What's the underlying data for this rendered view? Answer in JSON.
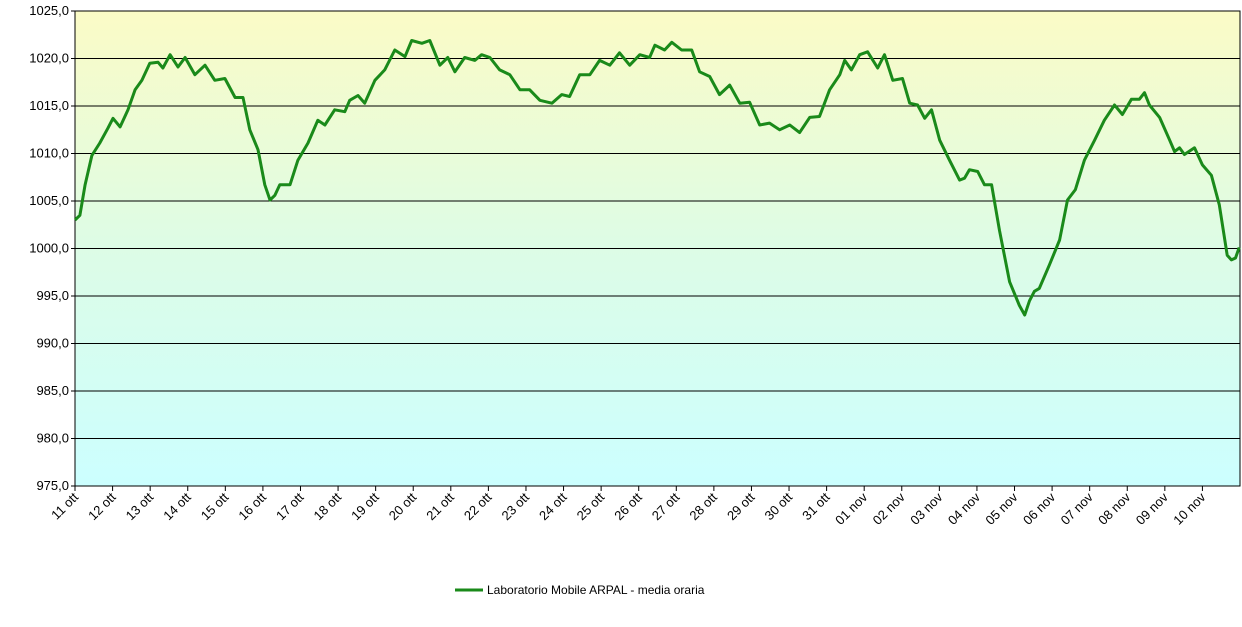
{
  "chart_data": {
    "type": "line",
    "x": [
      0,
      0.13,
      0.27,
      0.45,
      0.66,
      0.88,
      1.01,
      1.2,
      1.41,
      1.6,
      1.78,
      1.99,
      2.21,
      2.34,
      2.53,
      2.74,
      2.93,
      3.19,
      3.46,
      3.72,
      3.99,
      4.26,
      4.47,
      4.65,
      4.87,
      5.05,
      5.19,
      5.32,
      5.45,
      5.72,
      5.93,
      6.2,
      6.46,
      6.65,
      6.91,
      7.18,
      7.31,
      7.53,
      7.71,
      7.98,
      8.24,
      8.51,
      8.78,
      8.96,
      9.23,
      9.44,
      9.71,
      9.92,
      10.11,
      10.37,
      10.64,
      10.82,
      11.04,
      11.3,
      11.57,
      11.84,
      12.1,
      12.37,
      12.69,
      12.95,
      13.16,
      13.43,
      13.7,
      13.96,
      14.23,
      14.49,
      14.76,
      15.03,
      15.29,
      15.43,
      15.69,
      15.88,
      16.14,
      16.41,
      16.62,
      16.89,
      17.15,
      17.42,
      17.69,
      17.95,
      18.22,
      18.48,
      18.75,
      19.02,
      19.28,
      19.55,
      19.81,
      20.08,
      20.35,
      20.48,
      20.66,
      20.88,
      21.09,
      21.36,
      21.54,
      21.76,
      22.02,
      22.21,
      22.42,
      22.61,
      22.79,
      23.01,
      23.27,
      23.54,
      23.67,
      23.8,
      24.02,
      24.2,
      24.39,
      24.6,
      24.87,
      25.13,
      25.27,
      25.4,
      25.53,
      25.66,
      25.93,
      26.2,
      26.41,
      26.62,
      26.86,
      27.13,
      27.39,
      27.66,
      27.87,
      28.11,
      28.32,
      28.46,
      28.59,
      28.86,
      29.12,
      29.26,
      29.39,
      29.52,
      29.79,
      30.0,
      30.24,
      30.45,
      30.66,
      30.77,
      30.88,
      30.98
    ],
    "series": [
      {
        "name": "Laboratorio Mobile ARPAL - media oraria",
        "color": "#1a8a1a",
        "values": [
          1003.0,
          1003.5,
          1006.7,
          1009.8,
          1011.1,
          1012.7,
          1013.7,
          1012.8,
          1014.6,
          1016.7,
          1017.7,
          1019.5,
          1019.6,
          1019.0,
          1020.4,
          1019.1,
          1020.1,
          1018.3,
          1019.3,
          1017.7,
          1017.9,
          1015.9,
          1015.9,
          1012.5,
          1010.4,
          1006.7,
          1005.1,
          1005.6,
          1006.7,
          1006.7,
          1009.3,
          1011.1,
          1013.5,
          1013.0,
          1014.6,
          1014.4,
          1015.6,
          1016.1,
          1015.3,
          1017.7,
          1018.8,
          1020.9,
          1020.2,
          1021.9,
          1021.6,
          1021.9,
          1019.3,
          1020.1,
          1018.6,
          1020.1,
          1019.8,
          1020.4,
          1020.1,
          1018.8,
          1018.3,
          1016.7,
          1016.7,
          1015.6,
          1015.3,
          1016.2,
          1016.0,
          1018.3,
          1018.3,
          1019.8,
          1019.3,
          1020.6,
          1019.3,
          1020.4,
          1020.1,
          1021.4,
          1020.9,
          1021.7,
          1020.9,
          1020.9,
          1018.6,
          1018.1,
          1016.2,
          1017.2,
          1015.3,
          1015.4,
          1013.0,
          1013.2,
          1012.5,
          1013.0,
          1012.2,
          1013.8,
          1013.9,
          1016.7,
          1018.3,
          1019.8,
          1018.8,
          1020.4,
          1020.7,
          1019.0,
          1020.4,
          1017.7,
          1017.9,
          1015.3,
          1015.1,
          1013.7,
          1014.6,
          1011.4,
          1009.3,
          1007.2,
          1007.4,
          1008.3,
          1008.1,
          1006.7,
          1006.7,
          1001.9,
          996.5,
          994.0,
          993.0,
          994.5,
          995.5,
          995.8,
          998.3,
          1000.9,
          1005.1,
          1006.2,
          1009.3,
          1011.4,
          1013.5,
          1015.1,
          1014.1,
          1015.7,
          1015.7,
          1016.4,
          1015.1,
          1013.8,
          1011.5,
          1010.2,
          1010.6,
          1009.9,
          1010.6,
          1008.8,
          1007.7,
          1004.6,
          999.3,
          998.8,
          999.0,
          1000.1
        ]
      }
    ],
    "xlim": [
      0,
      31
    ],
    "xticks": [
      {
        "value": 0,
        "label": "11 ott"
      },
      {
        "value": 1,
        "label": "12 ott"
      },
      {
        "value": 2,
        "label": "13 ott"
      },
      {
        "value": 3,
        "label": "14 ott"
      },
      {
        "value": 4,
        "label": "15 ott"
      },
      {
        "value": 5,
        "label": "16 ott"
      },
      {
        "value": 6,
        "label": "17 ott"
      },
      {
        "value": 7,
        "label": "18 ott"
      },
      {
        "value": 8,
        "label": "19 ott"
      },
      {
        "value": 9,
        "label": "20 ott"
      },
      {
        "value": 10,
        "label": "21 ott"
      },
      {
        "value": 11,
        "label": "22 ott"
      },
      {
        "value": 12,
        "label": "23 ott"
      },
      {
        "value": 13,
        "label": "24 ott"
      },
      {
        "value": 14,
        "label": "25 ott"
      },
      {
        "value": 15,
        "label": "26 ott"
      },
      {
        "value": 16,
        "label": "27 ott"
      },
      {
        "value": 17,
        "label": "28 ott"
      },
      {
        "value": 18,
        "label": "29 ott"
      },
      {
        "value": 19,
        "label": "30 ott"
      },
      {
        "value": 20,
        "label": "31 ott"
      },
      {
        "value": 21,
        "label": "01 nov"
      },
      {
        "value": 22,
        "label": "02 nov"
      },
      {
        "value": 23,
        "label": "03 nov"
      },
      {
        "value": 24,
        "label": "04 nov"
      },
      {
        "value": 25,
        "label": "05 nov"
      },
      {
        "value": 26,
        "label": "06 nov"
      },
      {
        "value": 27,
        "label": "07 nov"
      },
      {
        "value": 28,
        "label": "08 nov"
      },
      {
        "value": 29,
        "label": "09 nov"
      },
      {
        "value": 30,
        "label": "10 nov"
      }
    ],
    "ylim": [
      975,
      1025
    ],
    "yticks": [
      {
        "value": 975,
        "label": "975,0"
      },
      {
        "value": 980,
        "label": "980,0"
      },
      {
        "value": 985,
        "label": "985,0"
      },
      {
        "value": 990,
        "label": "990,0"
      },
      {
        "value": 995,
        "label": "995,0"
      },
      {
        "value": 1000,
        "label": "1000,0"
      },
      {
        "value": 1005,
        "label": "1005,0"
      },
      {
        "value": 1010,
        "label": "1010,0"
      },
      {
        "value": 1015,
        "label": "1015,0"
      },
      {
        "value": 1020,
        "label": "1020,0"
      },
      {
        "value": 1025,
        "label": "1025,0"
      }
    ],
    "grid": true,
    "legend": "bottom"
  }
}
